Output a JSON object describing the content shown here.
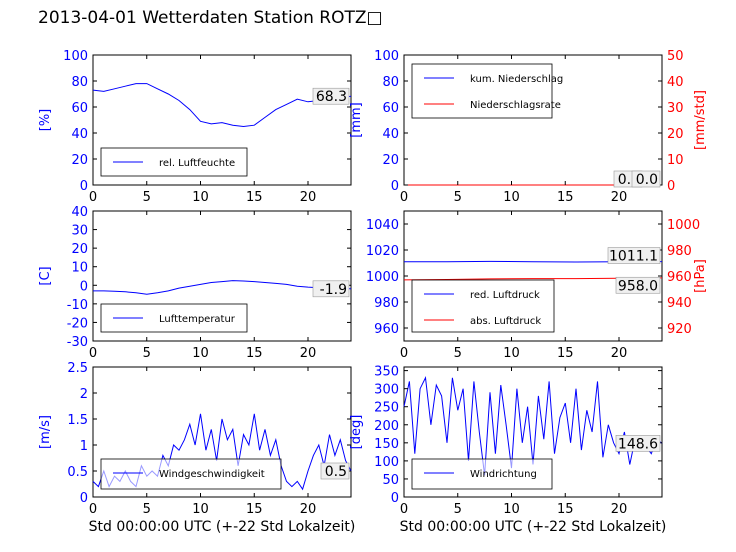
{
  "title": "2013-04-01 Wetterdaten Station ROTZ□",
  "chart_data": [
    {
      "panel": "top-left",
      "type": "line",
      "ylabel": "[%]",
      "ylim": [
        0,
        100
      ],
      "yticks": [
        0,
        20,
        40,
        60,
        80,
        100
      ],
      "xlim": [
        0,
        24
      ],
      "xticks": [
        0,
        5,
        10,
        15,
        20
      ],
      "legend_placement": "lower-left",
      "series": [
        {
          "name": "rel. Luftfeuchte",
          "color": "#0000ff",
          "axis": "left",
          "x": [
            0,
            1,
            2,
            3,
            4,
            5,
            6,
            7,
            8,
            9,
            10,
            11,
            12,
            13,
            14,
            15,
            16,
            17,
            18,
            19,
            20,
            21,
            22,
            23,
            24
          ],
          "values": [
            73,
            72,
            74,
            76,
            78,
            78,
            74,
            70,
            65,
            58,
            49,
            47,
            48,
            46,
            45,
            46,
            52,
            58,
            62,
            66,
            64,
            65,
            66,
            67,
            68.3
          ]
        }
      ],
      "annotations": [
        "68.3"
      ]
    },
    {
      "panel": "top-right",
      "type": "line",
      "ylabel": "[mm]",
      "ylim": [
        0,
        100
      ],
      "yticks": [
        0,
        20,
        40,
        60,
        80,
        100
      ],
      "ylabel_right": "[mm/std]",
      "ylim_right": [
        0,
        50
      ],
      "yticks_right": [
        0,
        10,
        20,
        30,
        40,
        50
      ],
      "xlim": [
        0,
        24
      ],
      "xticks": [
        0,
        5,
        10,
        15,
        20
      ],
      "legend_placement": "top-left",
      "series": [
        {
          "name": "kum. Niederschlag",
          "color": "#0000ff",
          "axis": "left",
          "x": [
            0,
            24
          ],
          "values": [
            0,
            0
          ]
        },
        {
          "name": "Niederschlagsrate",
          "color": "#ff0000",
          "axis": "right",
          "x": [
            0,
            24
          ],
          "values": [
            0,
            0
          ]
        }
      ],
      "annotations": [
        "0.0",
        "0.0"
      ]
    },
    {
      "panel": "middle-left",
      "type": "line",
      "ylabel": "[C]",
      "ylim": [
        -30,
        40
      ],
      "yticks": [
        -30,
        -20,
        -10,
        0,
        10,
        20,
        30,
        40
      ],
      "xlim": [
        0,
        24
      ],
      "xticks": [
        0,
        5,
        10,
        15,
        20
      ],
      "legend_placement": "lower-left",
      "series": [
        {
          "name": "Lufttemperatur",
          "color": "#0000ff",
          "axis": "left",
          "x": [
            0,
            1,
            2,
            3,
            4,
            5,
            6,
            7,
            8,
            9,
            10,
            11,
            12,
            13,
            14,
            15,
            16,
            17,
            18,
            19,
            20,
            21,
            22,
            23,
            24
          ],
          "values": [
            -3,
            -3,
            -3.2,
            -3.5,
            -4,
            -4.8,
            -4,
            -3,
            -1.5,
            -0.5,
            0.5,
            1.5,
            2,
            2.5,
            2.3,
            2,
            1.5,
            1,
            0.5,
            -0.5,
            -1,
            -1.3,
            -1.6,
            -1.8,
            -1.9
          ]
        }
      ],
      "annotations": [
        "-1.9"
      ]
    },
    {
      "panel": "middle-right",
      "type": "line",
      "ylabel": "",
      "ylim": [
        950,
        1050
      ],
      "yticks": [
        960,
        980,
        1000,
        1020,
        1040
      ],
      "ylabel_right": "[hPa]",
      "ylim_right": [
        910,
        1010
      ],
      "yticks_right": [
        920,
        940,
        960,
        980,
        1000
      ],
      "xlim": [
        0,
        24
      ],
      "xticks": [
        0,
        5,
        10,
        15,
        20
      ],
      "legend_placement": "lower-left",
      "series": [
        {
          "name": "red. Luftdruck",
          "color": "#0000ff",
          "axis": "left",
          "x": [
            0,
            4,
            8,
            12,
            16,
            20,
            24
          ],
          "values": [
            1011,
            1011,
            1011.2,
            1011,
            1010.8,
            1011,
            1011.1
          ]
        },
        {
          "name": "abs. Luftdruck",
          "color": "#ff0000",
          "axis": "left",
          "x": [
            0,
            4,
            8,
            12,
            16,
            20,
            24
          ],
          "values": [
            997,
            997.3,
            997.8,
            998,
            998,
            998.3,
            998.5
          ]
        }
      ],
      "annotations": [
        "1011.1",
        "958.0"
      ]
    },
    {
      "panel": "bottom-left",
      "type": "line",
      "ylabel": "[m/s]",
      "ylim": [
        0,
        2.5
      ],
      "yticks": [
        0.0,
        0.5,
        1.0,
        1.5,
        2.0,
        2.5
      ],
      "xlim": [
        0,
        24
      ],
      "xticks": [
        0,
        5,
        10,
        15,
        20
      ],
      "xlabel": "Std 00:00:00 UTC (+-22 Std Lokalzeit)",
      "legend_placement": "lower-left",
      "series": [
        {
          "name": "Windgeschwindigkeit",
          "color": "#0000ff",
          "axis": "left",
          "x": [
            0,
            0.5,
            1,
            1.5,
            2,
            2.5,
            3,
            3.5,
            4,
            4.5,
            5,
            5.5,
            6,
            6.5,
            7,
            7.5,
            8,
            8.5,
            9,
            9.5,
            10,
            10.5,
            11,
            11.5,
            12,
            12.5,
            13,
            13.5,
            14,
            14.5,
            15,
            15.5,
            16,
            16.5,
            17,
            17.5,
            18,
            18.5,
            19,
            19.5,
            20,
            20.5,
            21,
            21.5,
            22,
            22.5,
            23,
            23.5,
            24
          ],
          "values": [
            0.3,
            0.2,
            0.5,
            0.2,
            0.4,
            0.3,
            0.5,
            0.3,
            0.2,
            0.6,
            0.4,
            0.5,
            0.4,
            0.8,
            0.6,
            1.0,
            0.9,
            1.1,
            1.4,
            1.0,
            1.6,
            0.9,
            1.3,
            0.7,
            1.5,
            1.1,
            1.3,
            0.6,
            1.2,
            1.0,
            1.6,
            0.9,
            1.3,
            0.8,
            1.1,
            0.6,
            0.3,
            0.2,
            0.3,
            0.15,
            0.5,
            0.8,
            1.0,
            0.6,
            1.2,
            0.8,
            1.1,
            0.7,
            0.5
          ]
        }
      ],
      "annotations": [
        "0.5"
      ]
    },
    {
      "panel": "bottom-right",
      "type": "line",
      "ylabel": "[deg]",
      "ylim": [
        0,
        360
      ],
      "yticks": [
        0,
        50,
        100,
        150,
        200,
        250,
        300,
        350
      ],
      "xlim": [
        0,
        24
      ],
      "xticks": [
        0,
        5,
        10,
        15,
        20
      ],
      "xlabel": "Std 00:00:00 UTC (+-22 Std Lokalzeit)",
      "legend_placement": "lower-left",
      "series": [
        {
          "name": "Windrichtung",
          "color": "#0000ff",
          "axis": "left",
          "x": [
            0,
            0.5,
            1,
            1.5,
            2,
            2.5,
            3,
            3.5,
            4,
            4.5,
            5,
            5.5,
            6,
            6.5,
            7,
            7.5,
            8,
            8.5,
            9,
            9.5,
            10,
            10.5,
            11,
            11.5,
            12,
            12.5,
            13,
            13.5,
            14,
            14.5,
            15,
            15.5,
            16,
            16.5,
            17,
            17.5,
            18,
            18.5,
            19,
            19.5,
            20,
            20.5,
            21,
            21.5,
            22,
            22.5,
            23,
            23.5,
            24
          ],
          "values": [
            250,
            320,
            120,
            300,
            330,
            200,
            310,
            280,
            150,
            330,
            240,
            300,
            100,
            320,
            180,
            60,
            290,
            120,
            310,
            200,
            80,
            300,
            150,
            250,
            90,
            280,
            160,
            320,
            120,
            220,
            260,
            150,
            300,
            130,
            240,
            180,
            320,
            110,
            200,
            150,
            120,
            180,
            90,
            160,
            130,
            140,
            120,
            160,
            148.6
          ]
        }
      ],
      "annotations": [
        "148.6"
      ]
    }
  ]
}
